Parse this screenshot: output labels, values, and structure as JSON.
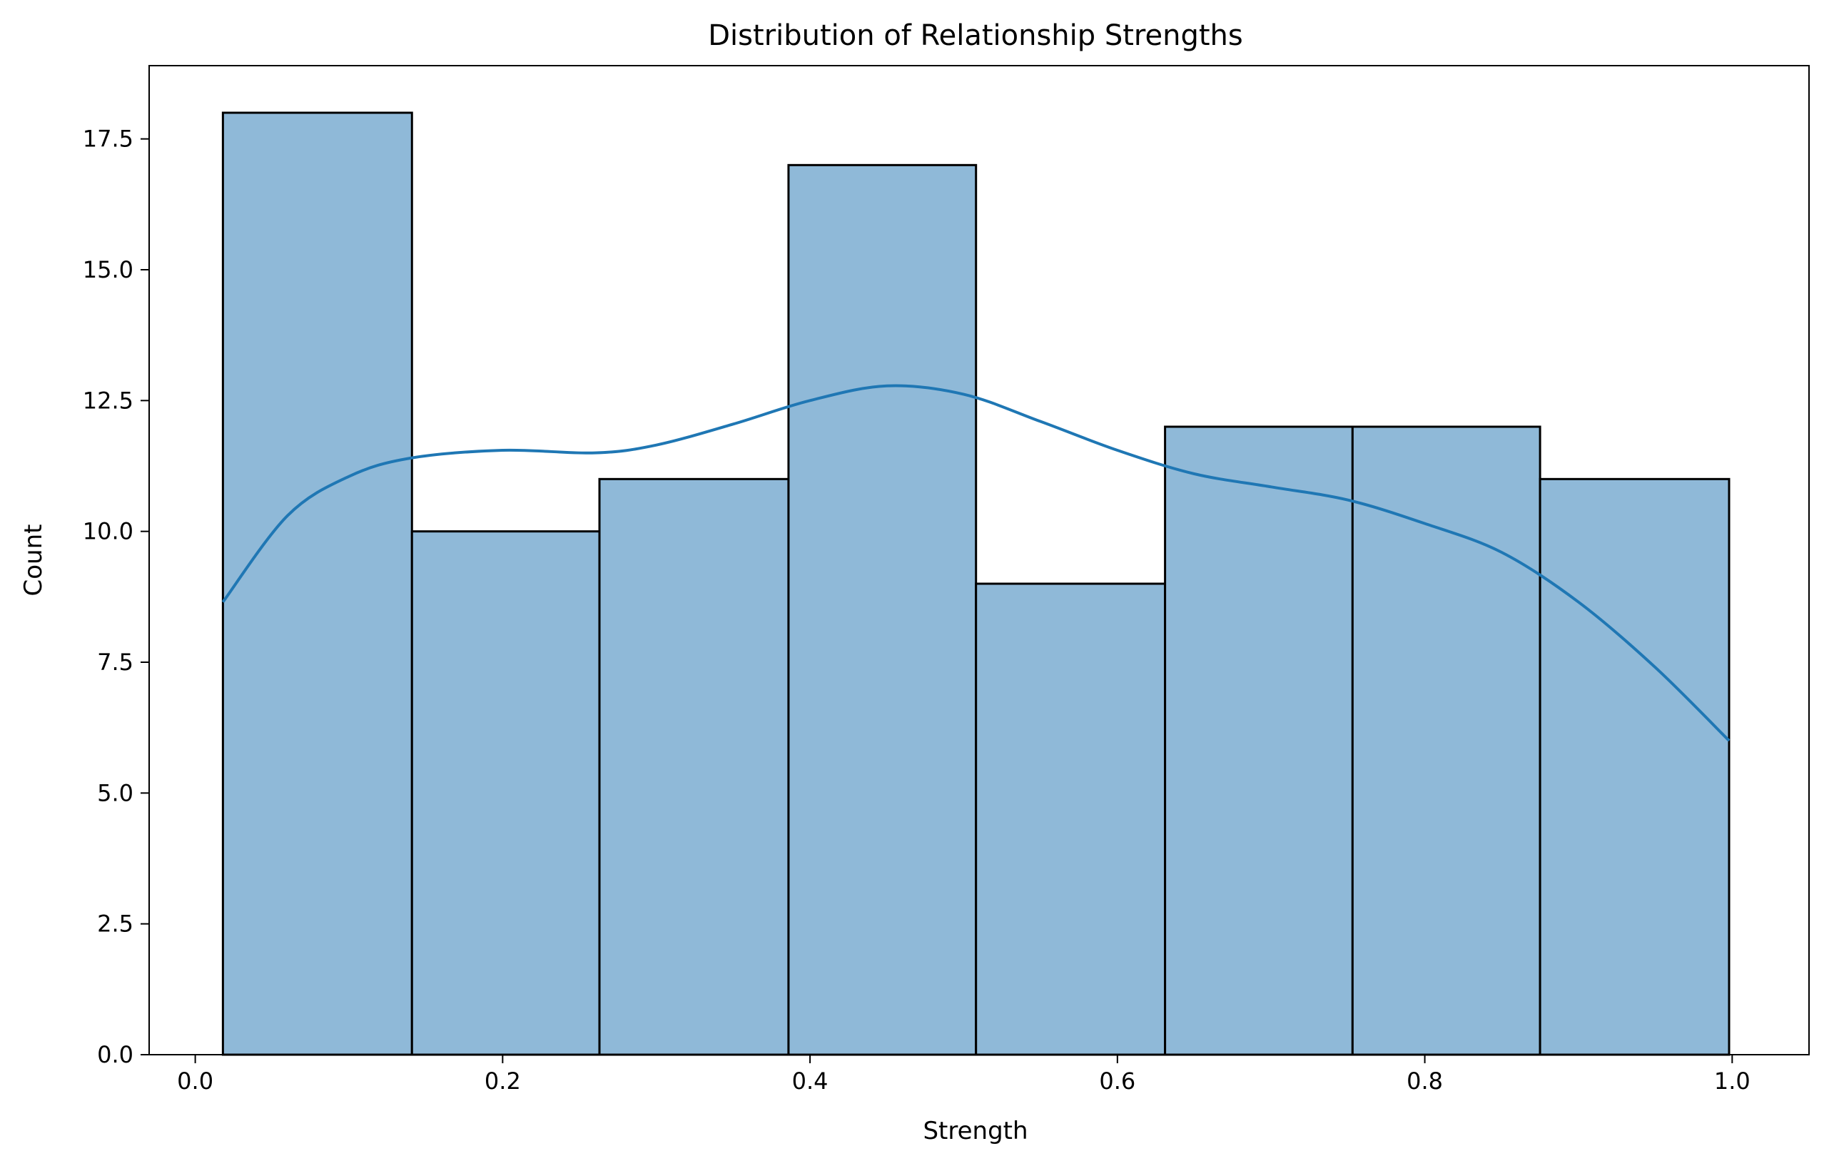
{
  "chart_data": {
    "type": "bar",
    "title": "Distribution of Relationship Strengths",
    "xlabel": "Strength",
    "ylabel": "Count",
    "xlim": [
      -0.03,
      1.05
    ],
    "ylim": [
      0,
      18.9
    ],
    "xticks": [
      0.0,
      0.2,
      0.4,
      0.6,
      0.8,
      1.0
    ],
    "xtick_labels": [
      "0.0",
      "0.2",
      "0.4",
      "0.6",
      "0.8",
      "1.0"
    ],
    "yticks": [
      0,
      2.5,
      5,
      7.5,
      10,
      12.5,
      15,
      17.5
    ],
    "ytick_labels": [
      "0.0",
      "2.5",
      "5.0",
      "7.5",
      "10.0",
      "12.5",
      "15.0",
      "17.5"
    ],
    "bins": [
      {
        "x0": 0.018,
        "x1": 0.141,
        "count": 18
      },
      {
        "x0": 0.141,
        "x1": 0.263,
        "count": 10
      },
      {
        "x0": 0.263,
        "x1": 0.386,
        "count": 11
      },
      {
        "x0": 0.386,
        "x1": 0.508,
        "count": 17
      },
      {
        "x0": 0.508,
        "x1": 0.631,
        "count": 9
      },
      {
        "x0": 0.631,
        "x1": 0.753,
        "count": 12
      },
      {
        "x0": 0.753,
        "x1": 0.875,
        "count": 12
      },
      {
        "x0": 0.875,
        "x1": 0.998,
        "count": 11
      }
    ],
    "kde": {
      "x": [
        0.018,
        0.06,
        0.1,
        0.14,
        0.2,
        0.26,
        0.3,
        0.35,
        0.4,
        0.45,
        0.5,
        0.55,
        0.6,
        0.65,
        0.7,
        0.75,
        0.8,
        0.85,
        0.9,
        0.95,
        0.998
      ],
      "y": [
        8.65,
        10.3,
        11.05,
        11.4,
        11.55,
        11.5,
        11.65,
        12.05,
        12.5,
        12.78,
        12.62,
        12.1,
        11.55,
        11.1,
        10.85,
        10.6,
        10.15,
        9.6,
        8.65,
        7.4,
        6.0
      ]
    },
    "colors": {
      "bar_fill": "#8fb9d8",
      "bar_edge": "#000000",
      "kde_line": "#1f77b4"
    }
  }
}
